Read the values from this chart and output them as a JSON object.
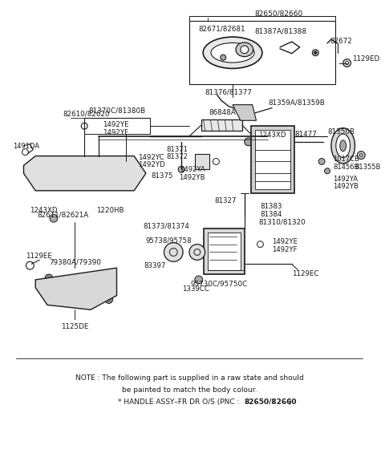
{
  "bg_color": "#ffffff",
  "line_color": "#1a1a1a",
  "figsize": [
    4.8,
    5.7
  ],
  "dpi": 100,
  "note_line1": "NOTE : The following part is supplied in a raw state and should",
  "note_line2": "be painted to match the body colour.",
  "note_line3_normal": "* HANDLE ASSY–FR DR O/S (PNC : ",
  "note_line3_bold": "82650/82660",
  "note_line3_end": ")"
}
